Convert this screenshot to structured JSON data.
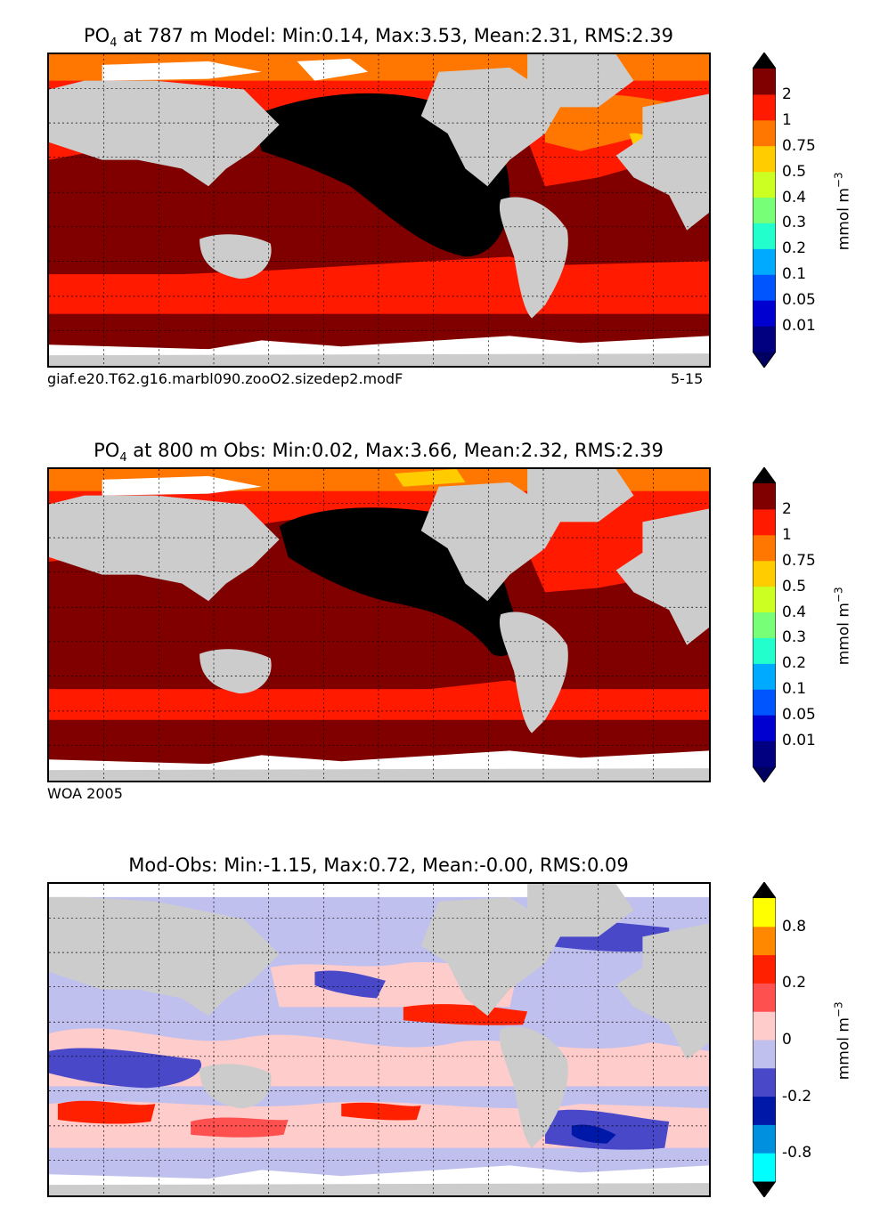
{
  "panels": [
    {
      "id": "model",
      "title_main": "PO",
      "title_sub": "4",
      "title_rest": " at 787 m Model: Min:0.14, Max:3.53, Mean:2.31, RMS:2.39",
      "footer_left": "giaf.e20.T62.g16.marbl090.zooO2.sizedep2.modF",
      "footer_right": "5-15",
      "units_main": "mmol m",
      "units_sup": "−3",
      "colorbar": {
        "ticks": [
          "2",
          "1",
          "0.75",
          "0.5",
          "0.4",
          "0.3",
          "0.2",
          "0.1",
          "0.05",
          "0.01"
        ],
        "colors": [
          "#000080",
          "#0000d0",
          "#0055ff",
          "#00aaff",
          "#22ffcc",
          "#77ff77",
          "#ccff22",
          "#ffcc00",
          "#ff7700",
          "#ff1a00",
          "#800000"
        ],
        "extend_min_color": "#000060",
        "extend_max_color": "#000000"
      }
    },
    {
      "id": "obs",
      "title_main": "PO",
      "title_sub": "4",
      "title_rest": " at 800 m Obs: Min:0.02, Max:3.66, Mean:2.32, RMS:2.39",
      "footer_left": "WOA 2005",
      "footer_right": "",
      "units_main": "mmol m",
      "units_sup": "−3",
      "colorbar": {
        "ticks": [
          "2",
          "1",
          "0.75",
          "0.5",
          "0.4",
          "0.3",
          "0.2",
          "0.1",
          "0.05",
          "0.01"
        ],
        "colors": [
          "#000080",
          "#0000d0",
          "#0055ff",
          "#00aaff",
          "#22ffcc",
          "#77ff77",
          "#ccff22",
          "#ffcc00",
          "#ff7700",
          "#ff1a00",
          "#800000"
        ],
        "extend_min_color": "#000060",
        "extend_max_color": "#000000"
      }
    },
    {
      "id": "diff",
      "title_main": "",
      "title_sub": "",
      "title_rest": "Mod-Obs: Min:-1.15, Max:0.72, Mean:-0.00, RMS:0.09",
      "footer_left": "",
      "footer_right": "",
      "units_main": "mmol m",
      "units_sup": "−3",
      "colorbar": {
        "ticks": [
          "0.8",
          "0.2",
          "0",
          "-0.2",
          "-0.8"
        ],
        "colors": [
          "#00ffff",
          "#0090e0",
          "#0018a8",
          "#4848c8",
          "#c0c0ee",
          "#ffcccc",
          "#ff5050",
          "#ff2000",
          "#ff8800",
          "#ffff00"
        ],
        "extend_min_color": "#000000",
        "extend_max_color": "#000000"
      }
    }
  ],
  "colors": {
    "land": "#cccccc",
    "missing": "#ffffff",
    "very_high": "#000000",
    "high": "#800000",
    "mid_red": "#ff1a00",
    "orange": "#ff7700"
  }
}
